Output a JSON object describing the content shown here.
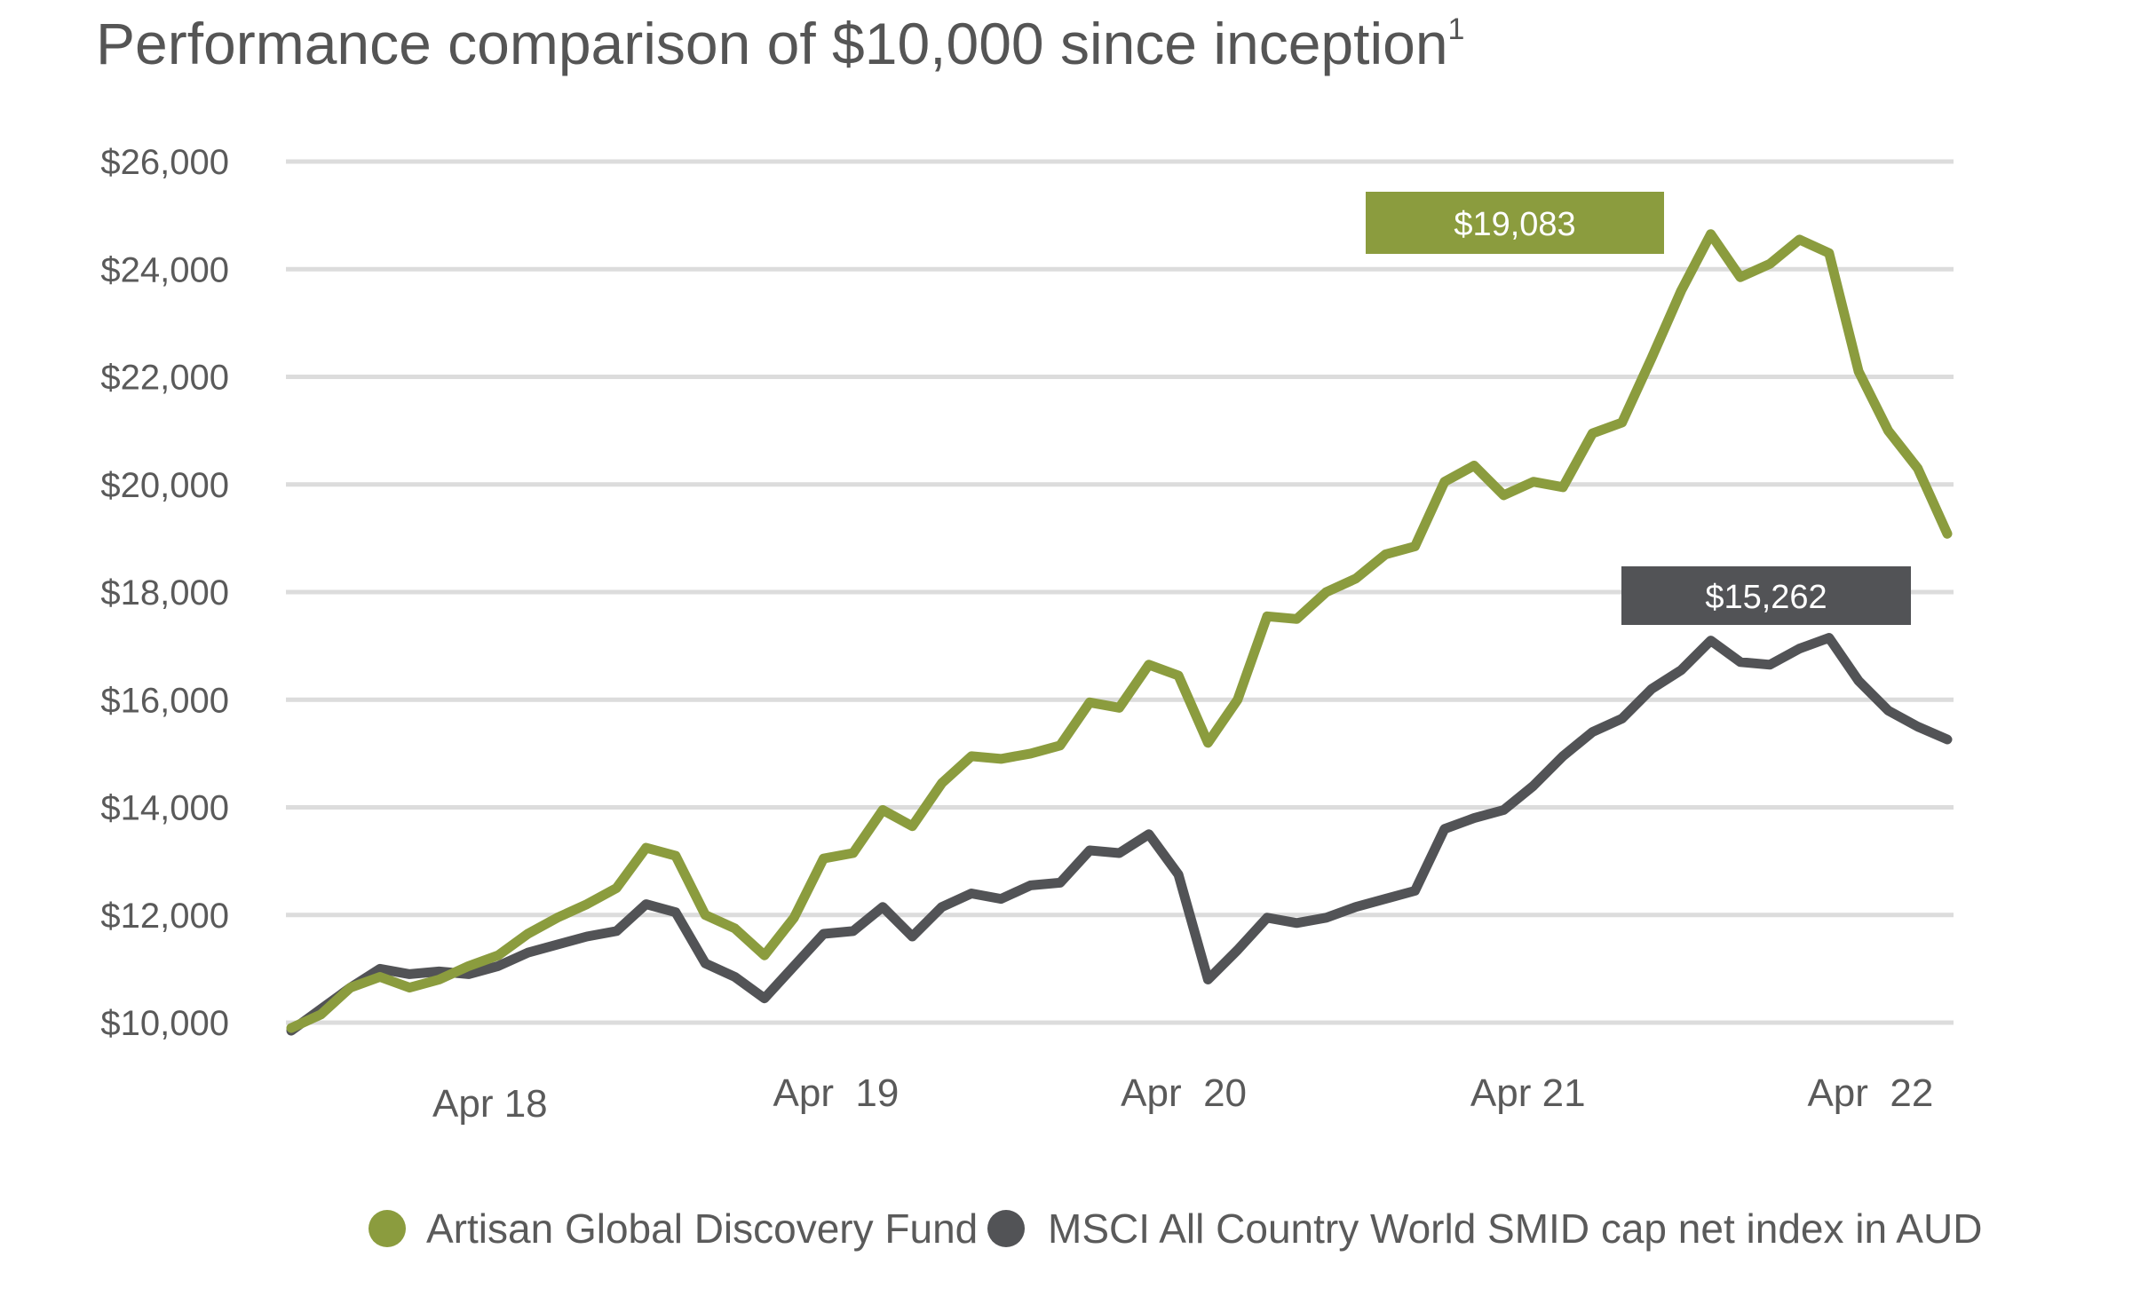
{
  "chart_data": {
    "type": "line",
    "title": "Performance comparison of $10,000 since inception",
    "title_superscript": "1",
    "xlabel": "",
    "ylabel": "",
    "ylim": [
      10000,
      26000
    ],
    "y_ticks": [
      10000,
      12000,
      14000,
      16000,
      18000,
      20000,
      22000,
      24000,
      26000
    ],
    "y_tick_labels": [
      "$10,000",
      "$12,000",
      "$14,000",
      "$16,000",
      "$18,000",
      "$20,000",
      "$22,000",
      "$24,000",
      "$26,000"
    ],
    "x_tick_labels": [
      "Apr 18",
      "Apr  19",
      "Apr  20",
      "Apr 21",
      "Apr  22"
    ],
    "x_tick_index": [
      6,
      18,
      30,
      42,
      54
    ],
    "grid": true,
    "legend_position": "bottom",
    "series": [
      {
        "name": "Artisan Global Discovery Fund",
        "color": "#8b9c3e",
        "end_label": "$19,083",
        "values": [
          9900,
          10150,
          10650,
          10850,
          10650,
          10800,
          11050,
          11250,
          11650,
          11950,
          12200,
          12500,
          13250,
          13100,
          12000,
          11750,
          11250,
          11950,
          13050,
          13150,
          13950,
          13650,
          14450,
          14950,
          14900,
          15000,
          15150,
          15950,
          15850,
          16650,
          16450,
          15200,
          16000,
          17550,
          17500,
          18000,
          18250,
          18700,
          18850,
          20050,
          20350,
          19800,
          20050,
          19950,
          20950,
          21150,
          22350,
          23600,
          24650,
          23850,
          24100,
          24550,
          24300,
          22100,
          21000,
          20300,
          19083
        ]
      },
      {
        "name": "MSCI All Country World SMID cap net index in AUD",
        "color": "#525356",
        "end_label": "$15,262",
        "values": [
          9850,
          10250,
          10650,
          11000,
          10900,
          10950,
          10900,
          11050,
          11300,
          11450,
          11600,
          11700,
          12200,
          12050,
          11100,
          10850,
          10450,
          11050,
          11650,
          11700,
          12150,
          11600,
          12150,
          12400,
          12300,
          12550,
          12600,
          13200,
          13150,
          13500,
          12750,
          10800,
          11350,
          11950,
          11850,
          11950,
          12150,
          12300,
          12450,
          13600,
          13800,
          13950,
          14400,
          14950,
          15400,
          15650,
          16200,
          16550,
          17100,
          16700,
          16650,
          16950,
          17150,
          16350,
          15800,
          15500,
          15262
        ]
      }
    ]
  }
}
